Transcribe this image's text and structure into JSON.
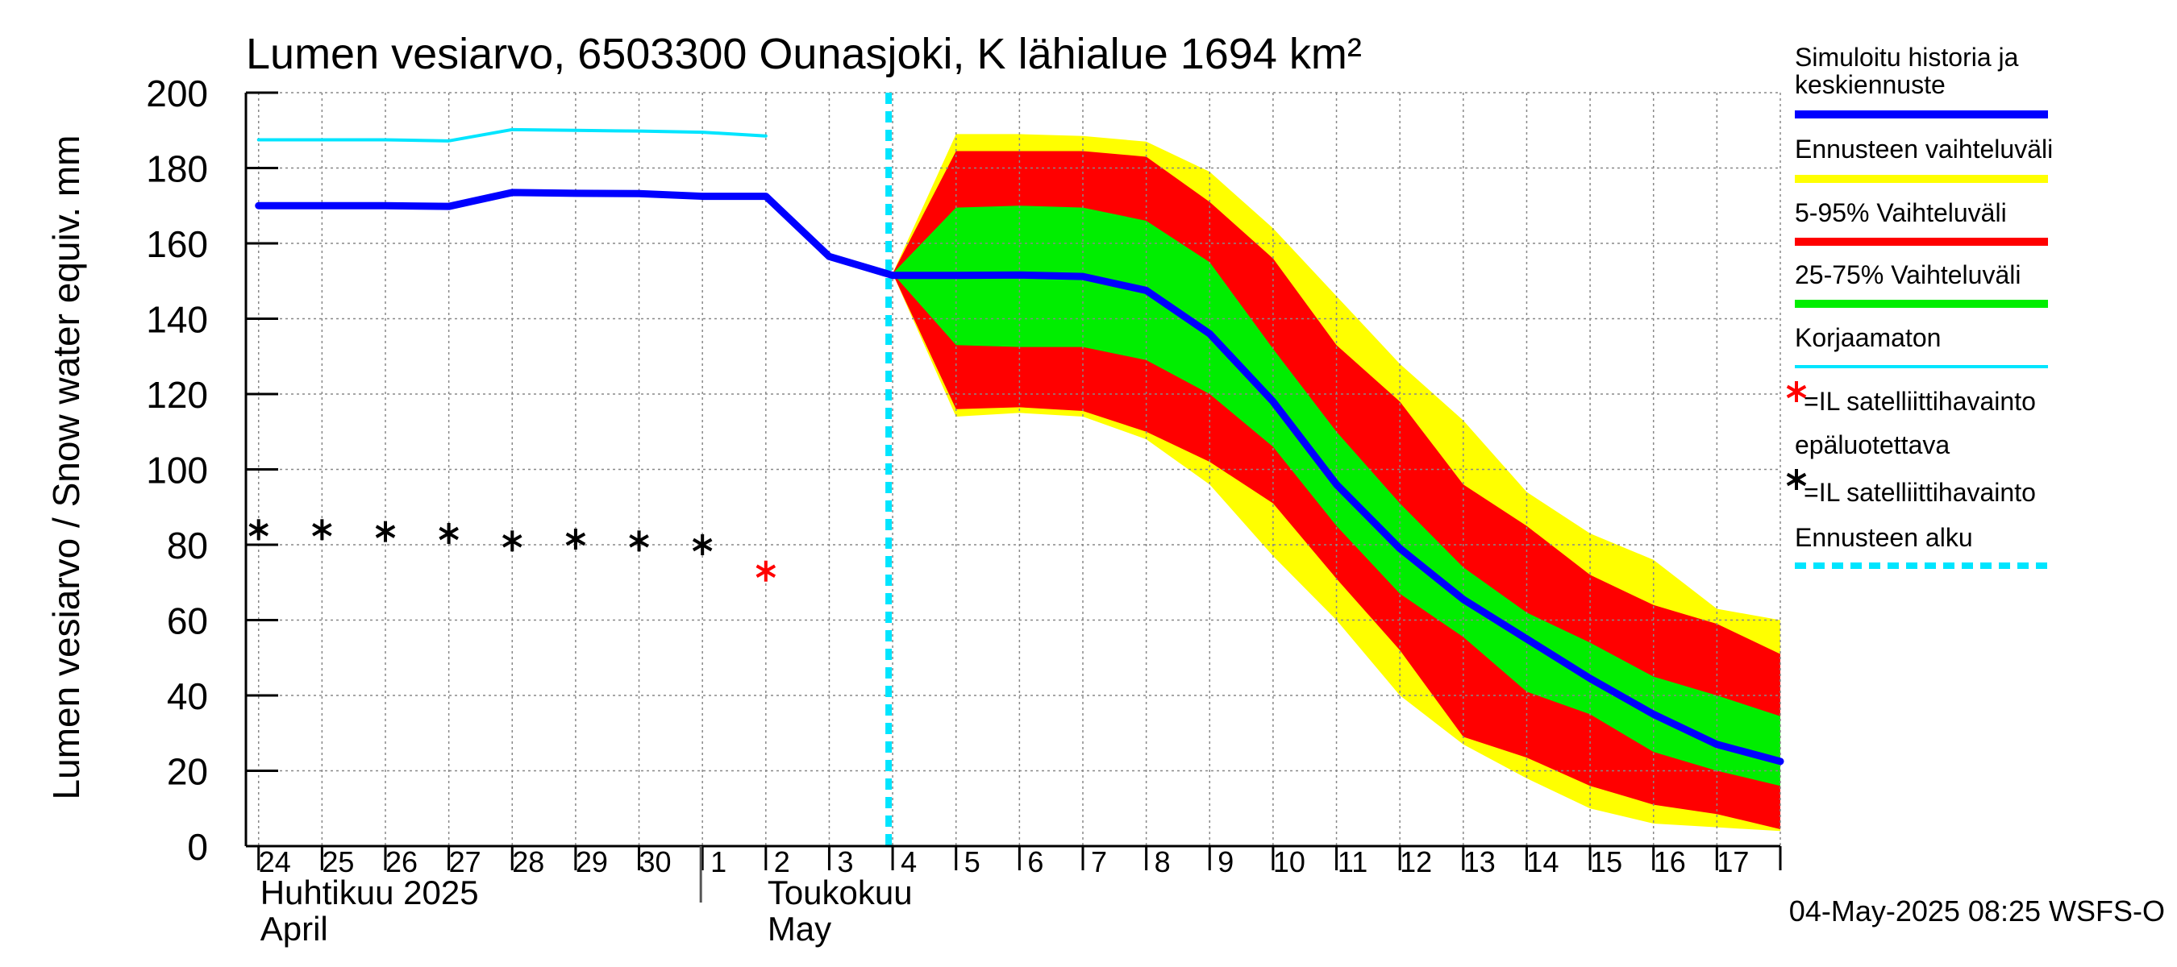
{
  "chart_data": {
    "type": "area",
    "title": "Lumen vesiarvo, 6503300 Ounasjoki, K lähialue 1694 km²",
    "ylabel": "Lumen vesiarvo / Snow water equiv.    mm",
    "ylim": [
      0,
      200
    ],
    "yticks": [
      "0",
      "20",
      "40",
      "60",
      "80",
      "100",
      "120",
      "140",
      "160",
      "180",
      "200"
    ],
    "x_day_range": [
      -0.2,
      24
    ],
    "day_labels": [
      "24",
      "25",
      "26",
      "27",
      "28",
      "29",
      "30",
      "1",
      "2",
      "3",
      "4",
      "5",
      "6",
      "7",
      "8",
      "9",
      "10",
      "11",
      "12",
      "13",
      "14",
      "15",
      "16",
      "17"
    ],
    "month_labels": [
      {
        "fi": "Huhtikuu  2025",
        "en": "April",
        "day": 0
      },
      {
        "fi": "Toukokuu",
        "en": "May",
        "day": 8
      }
    ],
    "month_divider_day": 7,
    "forecast_start_day": 10,
    "grid": true,
    "series": [
      {
        "name": "Korjaamaton",
        "color": "#00e5ff",
        "x": [
          0,
          1,
          2,
          3,
          4,
          5,
          6,
          7,
          8
        ],
        "y": [
          187.5,
          187.5,
          187.5,
          187.2,
          190.2,
          190,
          189.8,
          189.5,
          188.5
        ]
      },
      {
        "name": "Simuloitu historia ja keskiennuste",
        "color": "#0000ff",
        "x": [
          0,
          1,
          2,
          3,
          4,
          5,
          6,
          7,
          8,
          9,
          10,
          11,
          12,
          13,
          14,
          15,
          16,
          17,
          18,
          19,
          20,
          21,
          22,
          23,
          24
        ],
        "y": [
          170,
          170,
          170,
          169.8,
          173.5,
          173.3,
          173.2,
          172.5,
          172.5,
          156.5,
          151.5,
          151.5,
          151.6,
          151.2,
          147.5,
          136,
          118,
          96,
          79,
          65.5,
          55,
          44.5,
          35,
          27,
          22.5
        ]
      }
    ],
    "bands": [
      {
        "name": "Ennusteen vaihteluväli",
        "color": "#ffff00",
        "x": [
          10,
          11,
          12,
          13,
          14,
          15,
          16,
          17,
          18,
          19,
          20,
          21,
          22,
          23,
          24
        ],
        "upper": [
          152,
          189,
          189,
          188.5,
          187,
          179,
          164,
          146,
          128,
          113,
          94,
          83,
          76,
          63,
          60
        ],
        "lower": [
          152,
          114,
          115,
          114,
          108,
          96,
          77,
          60,
          40,
          27,
          18,
          10,
          6,
          5,
          4
        ]
      },
      {
        "name": "5-95% Vaihteluväli",
        "color": "#ff0000",
        "x": [
          10,
          11,
          12,
          13,
          14,
          15,
          16,
          17,
          18,
          19,
          20,
          21,
          22,
          23,
          24
        ],
        "upper": [
          152,
          184.5,
          184.5,
          184.5,
          183,
          171,
          156,
          133,
          118,
          96,
          85,
          72,
          64,
          59,
          51
        ],
        "lower": [
          152,
          116,
          116.5,
          115.5,
          110,
          102,
          91,
          71,
          52,
          29,
          23.5,
          16,
          11,
          8.5,
          4.5
        ]
      },
      {
        "name": "25-75% Vaihteluväli",
        "color": "#00ee00",
        "x": [
          10,
          11,
          12,
          13,
          14,
          15,
          16,
          17,
          18,
          19,
          20,
          21,
          22,
          23,
          24
        ],
        "upper": [
          152,
          169.5,
          170,
          169.5,
          166,
          155,
          132,
          110,
          91,
          74,
          62,
          54,
          45,
          40,
          34.5
        ],
        "lower": [
          152,
          133,
          132.5,
          132.5,
          129,
          120,
          106,
          85,
          67,
          55.5,
          41,
          35,
          25,
          20,
          16
        ]
      }
    ],
    "observations": [
      {
        "name": "=IL satelliittihavainto",
        "marker": "*",
        "color": "#000000",
        "x": [
          0,
          1,
          2,
          3,
          4,
          5,
          6,
          7
        ],
        "y": [
          84,
          84,
          83.5,
          83,
          81,
          81.5,
          81,
          80
        ]
      },
      {
        "name": "=IL satelliittihavainto epäluotettava",
        "marker": "*",
        "color": "#ff0000",
        "x": [
          8
        ],
        "y": [
          73
        ]
      }
    ],
    "legend": {
      "position": "right",
      "items": [
        {
          "text": [
            "Simuloitu historia ja",
            "keskiennuste"
          ],
          "color": "#0000ff",
          "kind": "line"
        },
        {
          "text": [
            "Ennusteen vaihteluväli"
          ],
          "color": "#ffff00",
          "kind": "line"
        },
        {
          "text": [
            "5-95% Vaihteluväli"
          ],
          "color": "#ff0000",
          "kind": "line"
        },
        {
          "text": [
            "25-75% Vaihteluväli"
          ],
          "color": "#00ee00",
          "kind": "line"
        },
        {
          "text": [
            "Korjaamaton"
          ],
          "color": "#00e5ff",
          "kind": "thin"
        },
        {
          "text": [
            "=IL satelliittihavainto",
            "epäluotettava"
          ],
          "color": "#ff0000",
          "kind": "star"
        },
        {
          "text": [
            "=IL satelliittihavainto"
          ],
          "color": "#000000",
          "kind": "star"
        },
        {
          "text": [
            "Ennusteen alku"
          ],
          "color": "#00e5ff",
          "kind": "dash"
        }
      ]
    },
    "footer": "04-May-2025 08:25 WSFS-O"
  }
}
